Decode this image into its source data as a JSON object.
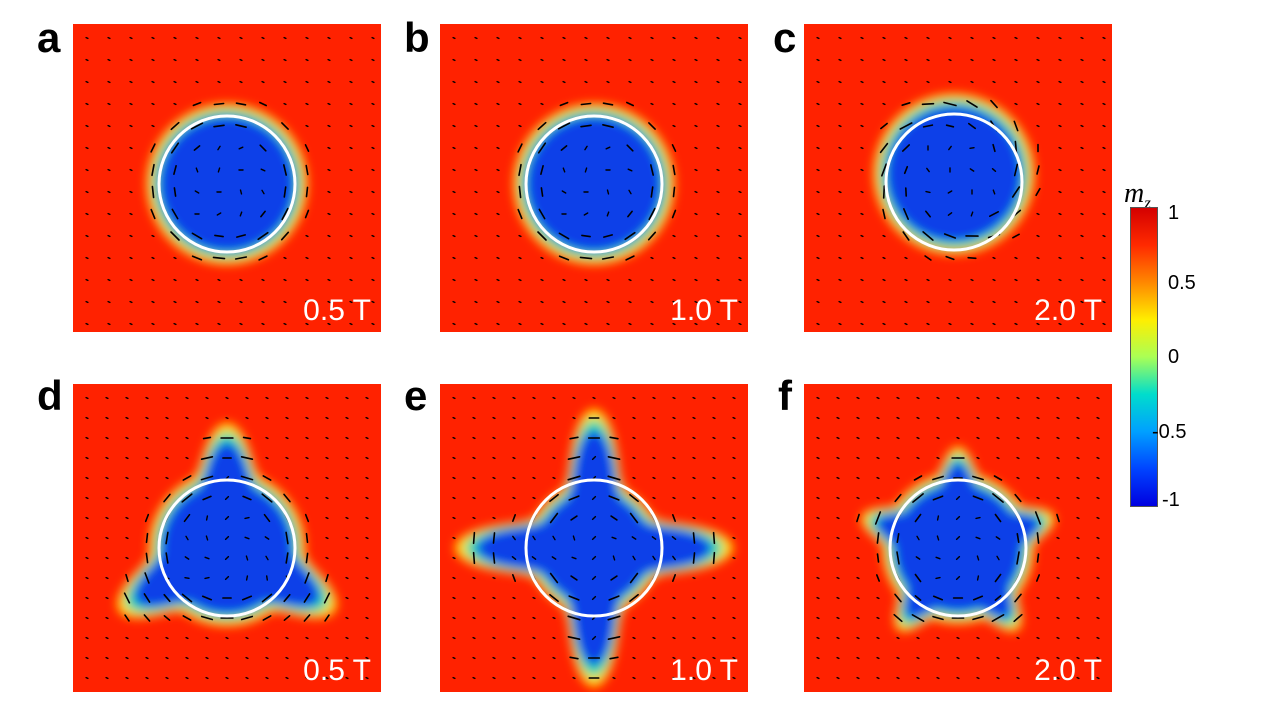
{
  "figure": {
    "panels": [
      {
        "letter": "a",
        "field": "0.5 T",
        "shape": "circle"
      },
      {
        "letter": "b",
        "field": "1.0 T",
        "shape": "circle"
      },
      {
        "letter": "c",
        "field": "2.0 T",
        "shape": "circle"
      },
      {
        "letter": "d",
        "field": "0.5 T",
        "shape": "triangle"
      },
      {
        "letter": "e",
        "field": "1.0 T",
        "shape": "star4"
      },
      {
        "letter": "f",
        "field": "2.0 T",
        "shape": "star5"
      }
    ],
    "colorbar": {
      "symbol": "m",
      "subscript": "z",
      "ticks": [
        "1",
        "0.5",
        "0",
        "-0.5",
        "-1"
      ],
      "stops": [
        "#d40000",
        "#ff2a00",
        "#ff8800",
        "#ffee00",
        "#aaff55",
        "#00ddcc",
        "#00a0ff",
        "#0044ff",
        "#0000e0"
      ]
    },
    "colors": {
      "background": "#ff2200",
      "core": "#0a3fe8",
      "outline": "#ffffff",
      "arrow": "#000000"
    }
  }
}
